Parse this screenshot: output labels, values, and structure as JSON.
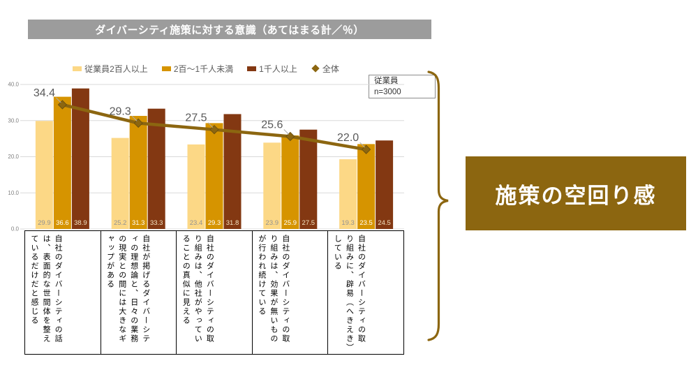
{
  "colors": {
    "title_bar_bg": "#9C9C9C",
    "callout_bg": "#8C6610",
    "brace": "#8C6610",
    "grid": "#D9D9D9",
    "axis_text": "#7F7F7F",
    "data_label_text": "#595959",
    "leader_line": "#ABABAB"
  },
  "note_box": {
    "line1": "従業員",
    "line2": "n=3000"
  },
  "callout": {
    "label": "施策の空回り感"
  },
  "chart_data": {
    "type": "bar",
    "title": "ダイバーシティ施策に対する意識（あてはまる計／％）",
    "categories": [
      "自社のダイバーシティの話は、表面的な世間体を整えているだけだと感じる",
      "自社が掲げるダイバーシティの理想論と、日々の業務の現実との間には大きなギャップがある",
      "自社のダイバーシティの取り組みは、他社がやっていることの真似に見える",
      "自社のダイバーシティの取り組みは、効果が無いものが行われ続けている",
      "自社のダイバーシティの取り組みに、辟易（へきえき）している"
    ],
    "series": [
      {
        "name": "従業員2百人以上",
        "color": "#FCD886",
        "label_color": "#929292",
        "values": [
          29.9,
          25.2,
          23.4,
          23.9,
          19.3
        ]
      },
      {
        "name": "2百～1千人未満",
        "color": "#D69400",
        "label_color": "#FFFFFF",
        "values": [
          36.6,
          31.3,
          29.3,
          25.9,
          23.5
        ]
      },
      {
        "name": "1千人以上",
        "color": "#833812",
        "label_color": "#F3E3C3",
        "values": [
          38.9,
          33.3,
          31.8,
          27.5,
          24.5
        ]
      }
    ],
    "line_series": {
      "name": "全体",
      "color": "#8C6610",
      "values": [
        34.4,
        29.3,
        27.5,
        25.6,
        22.0
      ]
    },
    "ylim": [
      0,
      40
    ],
    "yticks": [
      "0.0",
      "10.0",
      "20.0",
      "30.0",
      "40.0"
    ],
    "grid": true,
    "legend_position": "top",
    "sample_note": "従業員 n=3000"
  }
}
